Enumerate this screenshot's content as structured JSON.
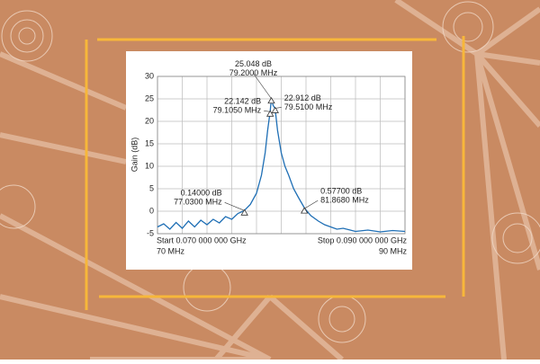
{
  "chart_data": {
    "type": "line",
    "y_label": "Gain (dB)",
    "start_label": "Start 0.070 000 000 GHz",
    "start_sub": "70 MHz",
    "stop_label": "Stop 0.090 000 000 GHz",
    "stop_sub": "90 MHz",
    "xlim": [
      70,
      90
    ],
    "xticks": [
      70,
      72,
      74,
      76,
      78,
      80,
      82,
      84,
      86,
      88,
      90
    ],
    "ylim": [
      -5,
      30
    ],
    "yticks": [
      -5,
      0,
      5,
      10,
      15,
      20,
      25,
      30
    ],
    "grid": true,
    "series": [
      {
        "color": "#1f6fb5",
        "x": [
          70,
          70.5,
          71,
          71.5,
          72,
          72.5,
          73,
          73.5,
          74,
          74.5,
          75,
          75.5,
          76,
          76.5,
          77,
          77.5,
          78,
          78.4,
          78.7,
          78.9,
          79.1,
          79.2,
          79.35,
          79.5,
          79.7,
          80,
          80.3,
          80.6,
          81,
          81.4,
          81.9,
          82.4,
          83,
          83.5,
          84,
          84.5,
          85,
          86,
          87,
          88,
          89,
          90
        ],
        "values": [
          -3.5,
          -2.8,
          -4.0,
          -2.5,
          -3.8,
          -2.2,
          -3.5,
          -2.0,
          -3.0,
          -1.8,
          -2.6,
          -1.2,
          -1.8,
          -0.5,
          0.1,
          1.5,
          4,
          8,
          13,
          18,
          22.1,
          25.0,
          23.5,
          22.9,
          18,
          13,
          10,
          8,
          5,
          3,
          0.6,
          -1,
          -2.2,
          -3,
          -3.5,
          -4,
          -3.8,
          -4.5,
          -4.2,
          -4.6,
          -4.3,
          -4.5
        ]
      }
    ],
    "annotations": [
      {
        "x": 79.2,
        "y": 25.048,
        "lines": [
          "25.048 dB",
          "79.2000 MHz"
        ]
      },
      {
        "x": 79.105,
        "y": 22.142,
        "lines": [
          "22.142 dB",
          "79.1050 MHz"
        ]
      },
      {
        "x": 79.51,
        "y": 22.912,
        "lines": [
          "22.912 dB",
          "79.5100 MHz"
        ]
      },
      {
        "x": 77.03,
        "y": 0.14,
        "lines": [
          "0.14000 dB",
          "77.0300 MHz"
        ]
      },
      {
        "x": 81.868,
        "y": 0.577,
        "lines": [
          "0.57700 dB",
          "81.8680 MHz"
        ]
      }
    ]
  }
}
